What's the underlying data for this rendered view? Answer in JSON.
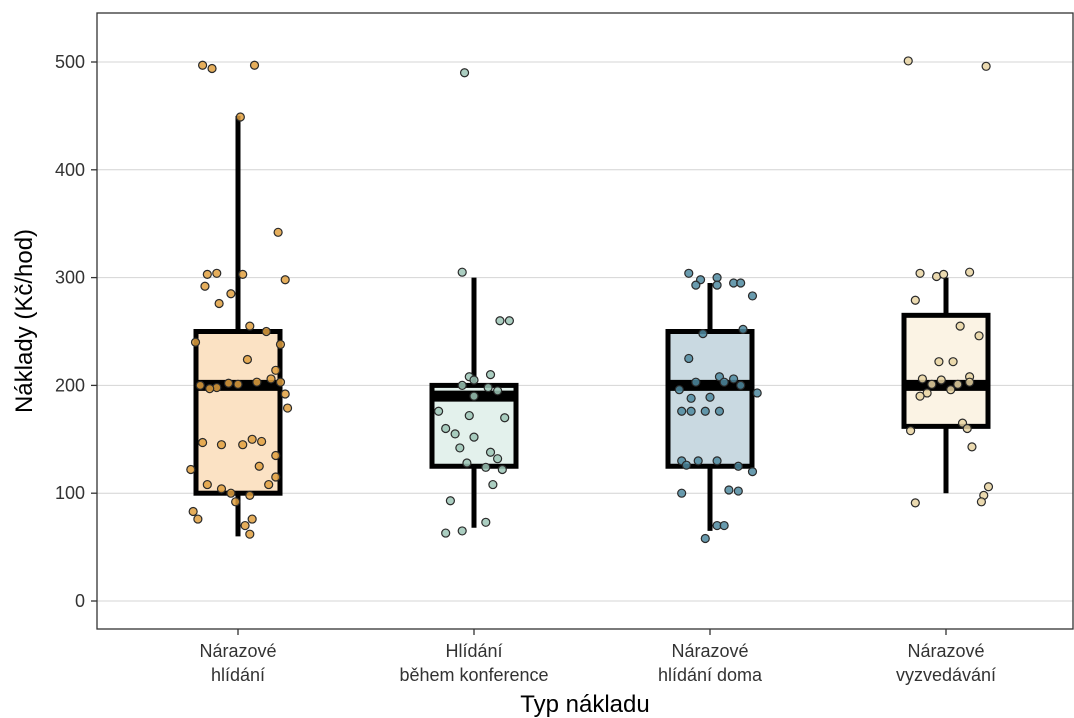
{
  "chart_data": {
    "type": "boxplot",
    "title": "",
    "xlabel": "Typ nákladu",
    "ylabel": "Náklady (Kč/hod)",
    "ylim": [
      -25,
      545
    ],
    "yticks": [
      0,
      100,
      200,
      300,
      400,
      500
    ],
    "grid": "horizontal major lines",
    "legend": "none",
    "categories": [
      {
        "line1": "Nárazové",
        "line2": "hlídání"
      },
      {
        "line1": "Hlídání",
        "line2": "během konference"
      },
      {
        "line1": "Nárazové",
        "line2": "hlídání doma"
      },
      {
        "line1": "Nárazové",
        "line2": "vyzvedávání"
      }
    ],
    "boxes": [
      {
        "whisker_low": 60,
        "q1": 100,
        "median": 200,
        "q3": 250,
        "whisker_high": 450,
        "fill": "#fbe2c4",
        "point_color": "#e0a040"
      },
      {
        "whisker_low": 68,
        "q1": 125,
        "median": 190,
        "q3": 200,
        "whisker_high": 300,
        "fill": "#e3f1ec",
        "point_color": "#9cc6b6"
      },
      {
        "whisker_low": 65,
        "q1": 125,
        "median": 200,
        "q3": 250,
        "whisker_high": 295,
        "fill": "#c9d9e1",
        "point_color": "#4f8aa0"
      },
      {
        "whisker_low": 100,
        "q1": 162,
        "median": 200,
        "q3": 265,
        "whisker_high": 300,
        "fill": "#fbf3e4",
        "point_color": "#e8d3a2"
      }
    ],
    "points": [
      [
        [
          -0.15,
          497
        ],
        [
          -0.11,
          494
        ],
        [
          0.07,
          497
        ],
        [
          0.01,
          449
        ],
        [
          0.17,
          342
        ],
        [
          -0.13,
          303
        ],
        [
          -0.09,
          304
        ],
        [
          0.02,
          303
        ],
        [
          0.2,
          298
        ],
        [
          -0.14,
          292
        ],
        [
          -0.08,
          276
        ],
        [
          -0.03,
          285
        ],
        [
          0.05,
          255
        ],
        [
          0.12,
          250
        ],
        [
          -0.18,
          240
        ],
        [
          0.18,
          238
        ],
        [
          0.04,
          224
        ],
        [
          0.16,
          214
        ],
        [
          -0.16,
          200
        ],
        [
          -0.09,
          198
        ],
        [
          -0.04,
          202
        ],
        [
          0.0,
          201
        ],
        [
          0.08,
          203
        ],
        [
          0.14,
          206
        ],
        [
          0.18,
          203
        ],
        [
          0.2,
          192
        ],
        [
          0.21,
          179
        ],
        [
          -0.12,
          197
        ],
        [
          0.06,
          150
        ],
        [
          0.1,
          148
        ],
        [
          -0.15,
          147
        ],
        [
          -0.07,
          145
        ],
        [
          0.02,
          145
        ],
        [
          0.16,
          135
        ],
        [
          0.16,
          115
        ],
        [
          0.09,
          125
        ],
        [
          -0.2,
          122
        ],
        [
          0.13,
          108
        ],
        [
          -0.13,
          108
        ],
        [
          -0.07,
          104
        ],
        [
          -0.03,
          100
        ],
        [
          0.05,
          98
        ],
        [
          -0.01,
          92
        ],
        [
          -0.19,
          83
        ],
        [
          -0.17,
          76
        ],
        [
          0.06,
          76
        ],
        [
          0.03,
          70
        ],
        [
          0.05,
          62
        ]
      ],
      [
        [
          -0.04,
          490
        ],
        [
          -0.05,
          305
        ],
        [
          0.11,
          260
        ],
        [
          0.15,
          260
        ],
        [
          -0.02,
          208
        ],
        [
          0.0,
          205
        ],
        [
          0.07,
          210
        ],
        [
          -0.05,
          200
        ],
        [
          0.06,
          198
        ],
        [
          0.0,
          190
        ],
        [
          0.1,
          195
        ],
        [
          -0.15,
          176
        ],
        [
          -0.02,
          172
        ],
        [
          0.13,
          170
        ],
        [
          -0.12,
          160
        ],
        [
          -0.08,
          155
        ],
        [
          0.0,
          152
        ],
        [
          -0.06,
          142
        ],
        [
          0.07,
          138
        ],
        [
          0.1,
          132
        ],
        [
          -0.03,
          128
        ],
        [
          0.05,
          124
        ],
        [
          0.12,
          122
        ],
        [
          0.08,
          108
        ],
        [
          -0.1,
          93
        ],
        [
          0.05,
          73
        ],
        [
          -0.05,
          65
        ],
        [
          -0.12,
          63
        ]
      ],
      [
        [
          -0.09,
          304
        ],
        [
          -0.04,
          298
        ],
        [
          0.03,
          300
        ],
        [
          0.1,
          295
        ],
        [
          0.13,
          295
        ],
        [
          0.03,
          293
        ],
        [
          -0.06,
          293
        ],
        [
          0.18,
          283
        ],
        [
          0.14,
          252
        ],
        [
          -0.03,
          248
        ],
        [
          -0.09,
          225
        ],
        [
          0.04,
          208
        ],
        [
          0.1,
          206
        ],
        [
          -0.06,
          203
        ],
        [
          0.06,
          203
        ],
        [
          0.13,
          200
        ],
        [
          -0.13,
          196
        ],
        [
          0.2,
          193
        ],
        [
          0.0,
          189
        ],
        [
          -0.12,
          176
        ],
        [
          -0.08,
          176
        ],
        [
          0.04,
          176
        ],
        [
          -0.02,
          176
        ],
        [
          -0.08,
          188
        ],
        [
          -0.12,
          130
        ],
        [
          -0.05,
          130
        ],
        [
          0.03,
          130
        ],
        [
          -0.1,
          126
        ],
        [
          0.12,
          125
        ],
        [
          0.18,
          120
        ],
        [
          0.08,
          103
        ],
        [
          -0.12,
          100
        ],
        [
          0.12,
          102
        ],
        [
          0.03,
          70
        ],
        [
          0.06,
          70
        ],
        [
          -0.02,
          58
        ]
      ],
      [
        [
          -0.16,
          501
        ],
        [
          0.17,
          496
        ],
        [
          -0.11,
          304
        ],
        [
          -0.04,
          301
        ],
        [
          0.1,
          305
        ],
        [
          -0.01,
          303
        ],
        [
          -0.13,
          279
        ],
        [
          0.06,
          255
        ],
        [
          0.14,
          246
        ],
        [
          -0.03,
          222
        ],
        [
          0.03,
          222
        ],
        [
          0.1,
          208
        ],
        [
          -0.1,
          206
        ],
        [
          -0.02,
          205
        ],
        [
          -0.06,
          201
        ],
        [
          0.05,
          201
        ],
        [
          0.1,
          203
        ],
        [
          0.02,
          196
        ],
        [
          -0.08,
          193
        ],
        [
          -0.11,
          190
        ],
        [
          0.07,
          165
        ],
        [
          0.09,
          160
        ],
        [
          -0.15,
          158
        ],
        [
          0.11,
          143
        ],
        [
          0.18,
          106
        ],
        [
          0.16,
          98
        ],
        [
          0.15,
          92
        ],
        [
          -0.13,
          91
        ]
      ]
    ]
  }
}
